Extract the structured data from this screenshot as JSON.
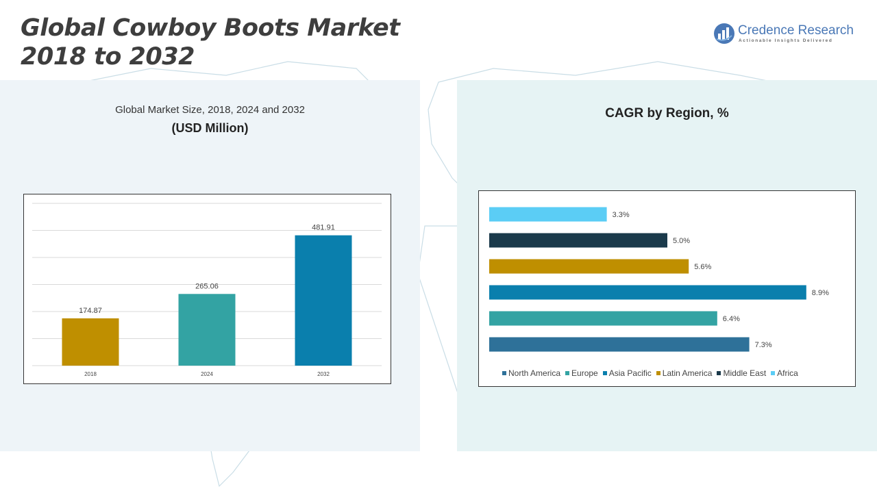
{
  "header": {
    "title_line1": "Global Cowboy Boots Market",
    "title_line2": "2018 to 2032"
  },
  "logo": {
    "name": "Credence Research",
    "tagline": "Actionable Insights Delivered",
    "icon": "credence-logo-icon"
  },
  "left_panel": {
    "subtitle": "Global Market Size, 2018, 2024 and 2032",
    "unit": "(USD Million)"
  },
  "right_panel": {
    "title": "CAGR by Region, %"
  },
  "chart_data": [
    {
      "type": "bar",
      "categories": [
        "2018",
        "2024",
        "2032"
      ],
      "values": [
        174.87,
        265.06,
        481.91
      ],
      "value_labels": [
        "174.87",
        "265.06",
        "481.91"
      ],
      "colors": [
        "#bf8f00",
        "#33a3a3",
        "#0a7fad"
      ],
      "ylim": [
        0,
        600
      ],
      "grid": true
    },
    {
      "type": "bar",
      "orientation": "horizontal",
      "categories": [
        "Africa",
        "Middle East",
        "Latin America",
        "Asia Pacific",
        "Europe",
        "North America"
      ],
      "values": [
        3.3,
        5.0,
        5.6,
        8.9,
        6.4,
        7.3
      ],
      "value_labels": [
        "3.3%",
        "5.0%",
        "5.6%",
        "8.9%",
        "6.4%",
        "7.3%"
      ],
      "colors": [
        "#5bcdf5",
        "#1b3a4b",
        "#bf8f00",
        "#0a7fad",
        "#33a3a3",
        "#2e7199"
      ],
      "xlim": [
        0,
        10
      ],
      "legend": {
        "placement": "bottom",
        "entries": [
          {
            "name": "North America",
            "color": "#2e7199"
          },
          {
            "name": "Europe",
            "color": "#33a3a3"
          },
          {
            "name": "Asia Pacific",
            "color": "#0a7fad"
          },
          {
            "name": "Latin America",
            "color": "#bf8f00"
          },
          {
            "name": "Middle East",
            "color": "#1b3a4b"
          },
          {
            "name": "Africa",
            "color": "#5bcdf5"
          }
        ]
      }
    }
  ]
}
